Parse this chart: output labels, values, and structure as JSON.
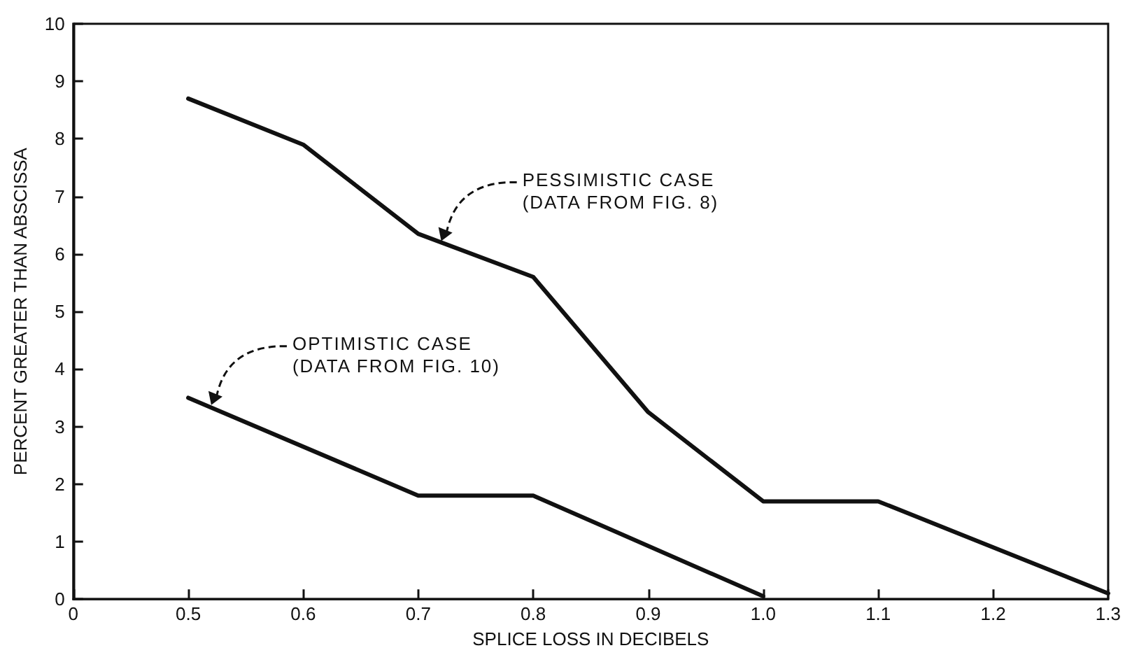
{
  "chart_data": {
    "type": "line",
    "xlabel": "SPLICE LOSS IN DECIBELS",
    "ylabel": "PERCENT GREATER THAN ABSCISSA",
    "series": [
      {
        "color": "#111111",
        "x": [
          0.5,
          0.6,
          0.7,
          0.8,
          0.9,
          1.0,
          1.1,
          1.3
        ],
        "values": [
          8.7,
          7.9,
          6.35,
          5.6,
          3.25,
          1.7,
          1.7,
          0.1
        ]
      },
      {
        "color": "#111111",
        "x": [
          0.5,
          0.7,
          0.8,
          1.0
        ],
        "values": [
          3.5,
          1.8,
          1.8,
          0.05
        ]
      }
    ],
    "annotations": [
      {
        "text": "PESSIMISTIC CASE\n(DATA FROM FIG. 8)",
        "x": 0.72,
        "y": 6.2
      },
      {
        "text": "OPTIMISTIC CASE\n(DATA FROM FIG. 10)",
        "x": 0.52,
        "y": 3.35
      }
    ],
    "xlim": [
      0.4,
      1.3
    ],
    "xticks": [
      {
        "value": 0.4,
        "label": "0"
      },
      0.5,
      0.6,
      0.7,
      0.8,
      0.9,
      {
        "value": 1.0,
        "label": "1.0"
      },
      1.1,
      1.2,
      1.3
    ],
    "ylim": [
      0,
      10
    ],
    "yticks": [
      0,
      1,
      2,
      3,
      4,
      5,
      6,
      7,
      8,
      9,
      10
    ],
    "grid": false,
    "marker": "none",
    "line_style": "solid"
  }
}
